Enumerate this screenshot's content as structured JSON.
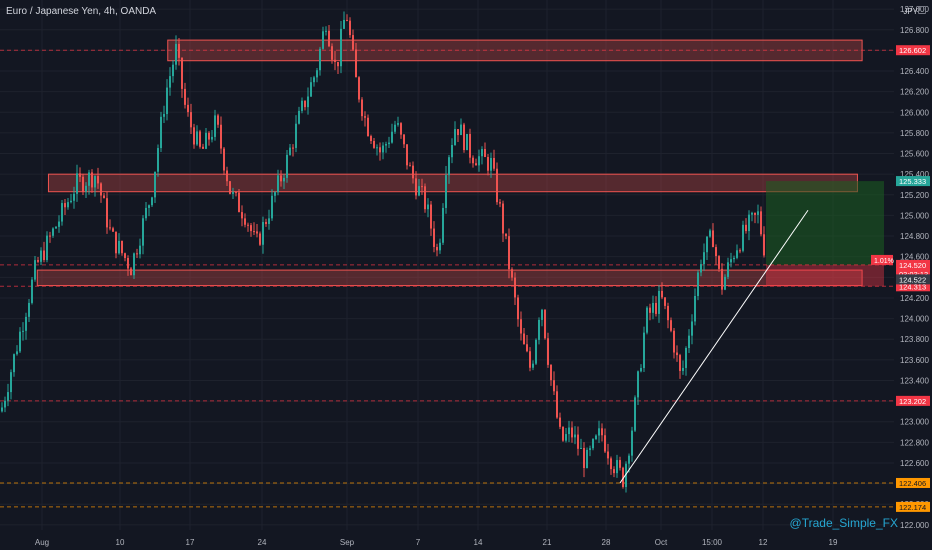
{
  "header": {
    "title": "Euro / Japanese Yen, 4h, OANDA"
  },
  "currency": "JPY",
  "watermark": "@Trade_Simple_FX",
  "colors": {
    "background": "#131722",
    "grid": "#1e222d",
    "up": "#26a69a",
    "down": "#ef5350",
    "zone_fill": "#ef5350",
    "target_fill": "#1b5e20",
    "trendline": "#ffffff",
    "level_red": "#f23645",
    "level_orange": "#ff9800",
    "axis_text": "#b2b5be"
  },
  "chart_data": {
    "type": "candlestick",
    "title": "Euro / Japanese Yen, 4h, OANDA",
    "x_ticks": [
      "Aug",
      "10",
      "17",
      "24",
      "Sep",
      "7",
      "14",
      "21",
      "28",
      "Oct",
      "15:00",
      "12",
      "19"
    ],
    "y_ticks": [
      "127.000",
      "126.800",
      "126.600",
      "126.400",
      "126.200",
      "126.000",
      "125.800",
      "125.600",
      "125.400",
      "125.200",
      "125.000",
      "124.800",
      "124.600",
      "124.400",
      "124.200",
      "124.000",
      "123.800",
      "123.600",
      "123.400",
      "123.200",
      "123.000",
      "122.800",
      "122.600",
      "122.400",
      "122.200",
      "122.000"
    ],
    "y_tick_values": [
      127.0,
      126.8,
      126.6,
      126.4,
      126.2,
      126.0,
      125.8,
      125.6,
      125.4,
      125.2,
      125.0,
      124.8,
      124.6,
      124.4,
      124.2,
      124.0,
      123.8,
      123.6,
      123.4,
      123.2,
      123.0,
      122.8,
      122.6,
      122.4,
      122.2,
      122.0
    ],
    "ylim": [
      121.95,
      127.05
    ],
    "price_path": [
      [
        0,
        123.1
      ],
      [
        20,
        123.9
      ],
      [
        35,
        124.5
      ],
      [
        55,
        124.9
      ],
      [
        75,
        125.3
      ],
      [
        95,
        125.4
      ],
      [
        110,
        124.8
      ],
      [
        130,
        124.5
      ],
      [
        150,
        125.2
      ],
      [
        165,
        126.2
      ],
      [
        175,
        126.6
      ],
      [
        185,
        126.0
      ],
      [
        200,
        125.6
      ],
      [
        215,
        125.9
      ],
      [
        230,
        125.2
      ],
      [
        245,
        125.0
      ],
      [
        255,
        124.7
      ],
      [
        270,
        125.1
      ],
      [
        285,
        125.5
      ],
      [
        300,
        126.0
      ],
      [
        315,
        126.4
      ],
      [
        325,
        126.9
      ],
      [
        335,
        126.4
      ],
      [
        345,
        127.0
      ],
      [
        355,
        126.3
      ],
      [
        365,
        125.9
      ],
      [
        380,
        125.6
      ],
      [
        395,
        125.9
      ],
      [
        410,
        125.4
      ],
      [
        425,
        125.1
      ],
      [
        437,
        124.6
      ],
      [
        445,
        125.5
      ],
      [
        455,
        125.9
      ],
      [
        470,
        125.6
      ],
      [
        490,
        125.5
      ],
      [
        500,
        125.0
      ],
      [
        510,
        124.4
      ],
      [
        520,
        123.8
      ],
      [
        530,
        123.5
      ],
      [
        540,
        124.2
      ],
      [
        550,
        123.4
      ],
      [
        560,
        122.8
      ],
      [
        570,
        122.9
      ],
      [
        585,
        122.6
      ],
      [
        600,
        122.9
      ],
      [
        612,
        122.6
      ],
      [
        622,
        122.45
      ],
      [
        632,
        123.0
      ],
      [
        645,
        124.0
      ],
      [
        660,
        124.2
      ],
      [
        672,
        123.8
      ],
      [
        680,
        123.4
      ],
      [
        690,
        124.0
      ],
      [
        700,
        124.6
      ],
      [
        712,
        124.8
      ],
      [
        720,
        124.3
      ],
      [
        735,
        124.7
      ],
      [
        748,
        124.9
      ],
      [
        757,
        125.0
      ],
      [
        765,
        124.6
      ]
    ],
    "resistance_levels": [
      {
        "label": "126.602",
        "value": 126.602,
        "color": "red"
      },
      {
        "label": "125.333",
        "value": 125.333,
        "color": "green"
      },
      {
        "label": "124.520",
        "value": 124.52,
        "color": "red"
      },
      {
        "label": "124.313",
        "value": 124.313,
        "color": "red"
      },
      {
        "label": "123.202",
        "value": 123.202,
        "color": "red"
      },
      {
        "label": "122.406",
        "value": 122.406,
        "color": "orange"
      },
      {
        "label": "122.174",
        "value": 122.174,
        "color": "orange"
      }
    ],
    "zones": [
      {
        "top": 126.7,
        "bottom": 126.5,
        "x_start": 0.18,
        "x_end": 0.925
      },
      {
        "top": 125.4,
        "bottom": 125.23,
        "x_start": 0.052,
        "x_end": 0.92
      },
      {
        "top": 124.47,
        "bottom": 124.32,
        "x_start": 0.04,
        "x_end": 0.925
      }
    ],
    "position": {
      "label": "1.01%",
      "entry": 124.52,
      "target": 125.333,
      "stop": 124.313
    },
    "price_labels": {
      "current": "124.520",
      "countdown": "03:03:13",
      "last": "124.522"
    },
    "trendline": {
      "from": 122.406,
      "to": 125.05
    }
  }
}
